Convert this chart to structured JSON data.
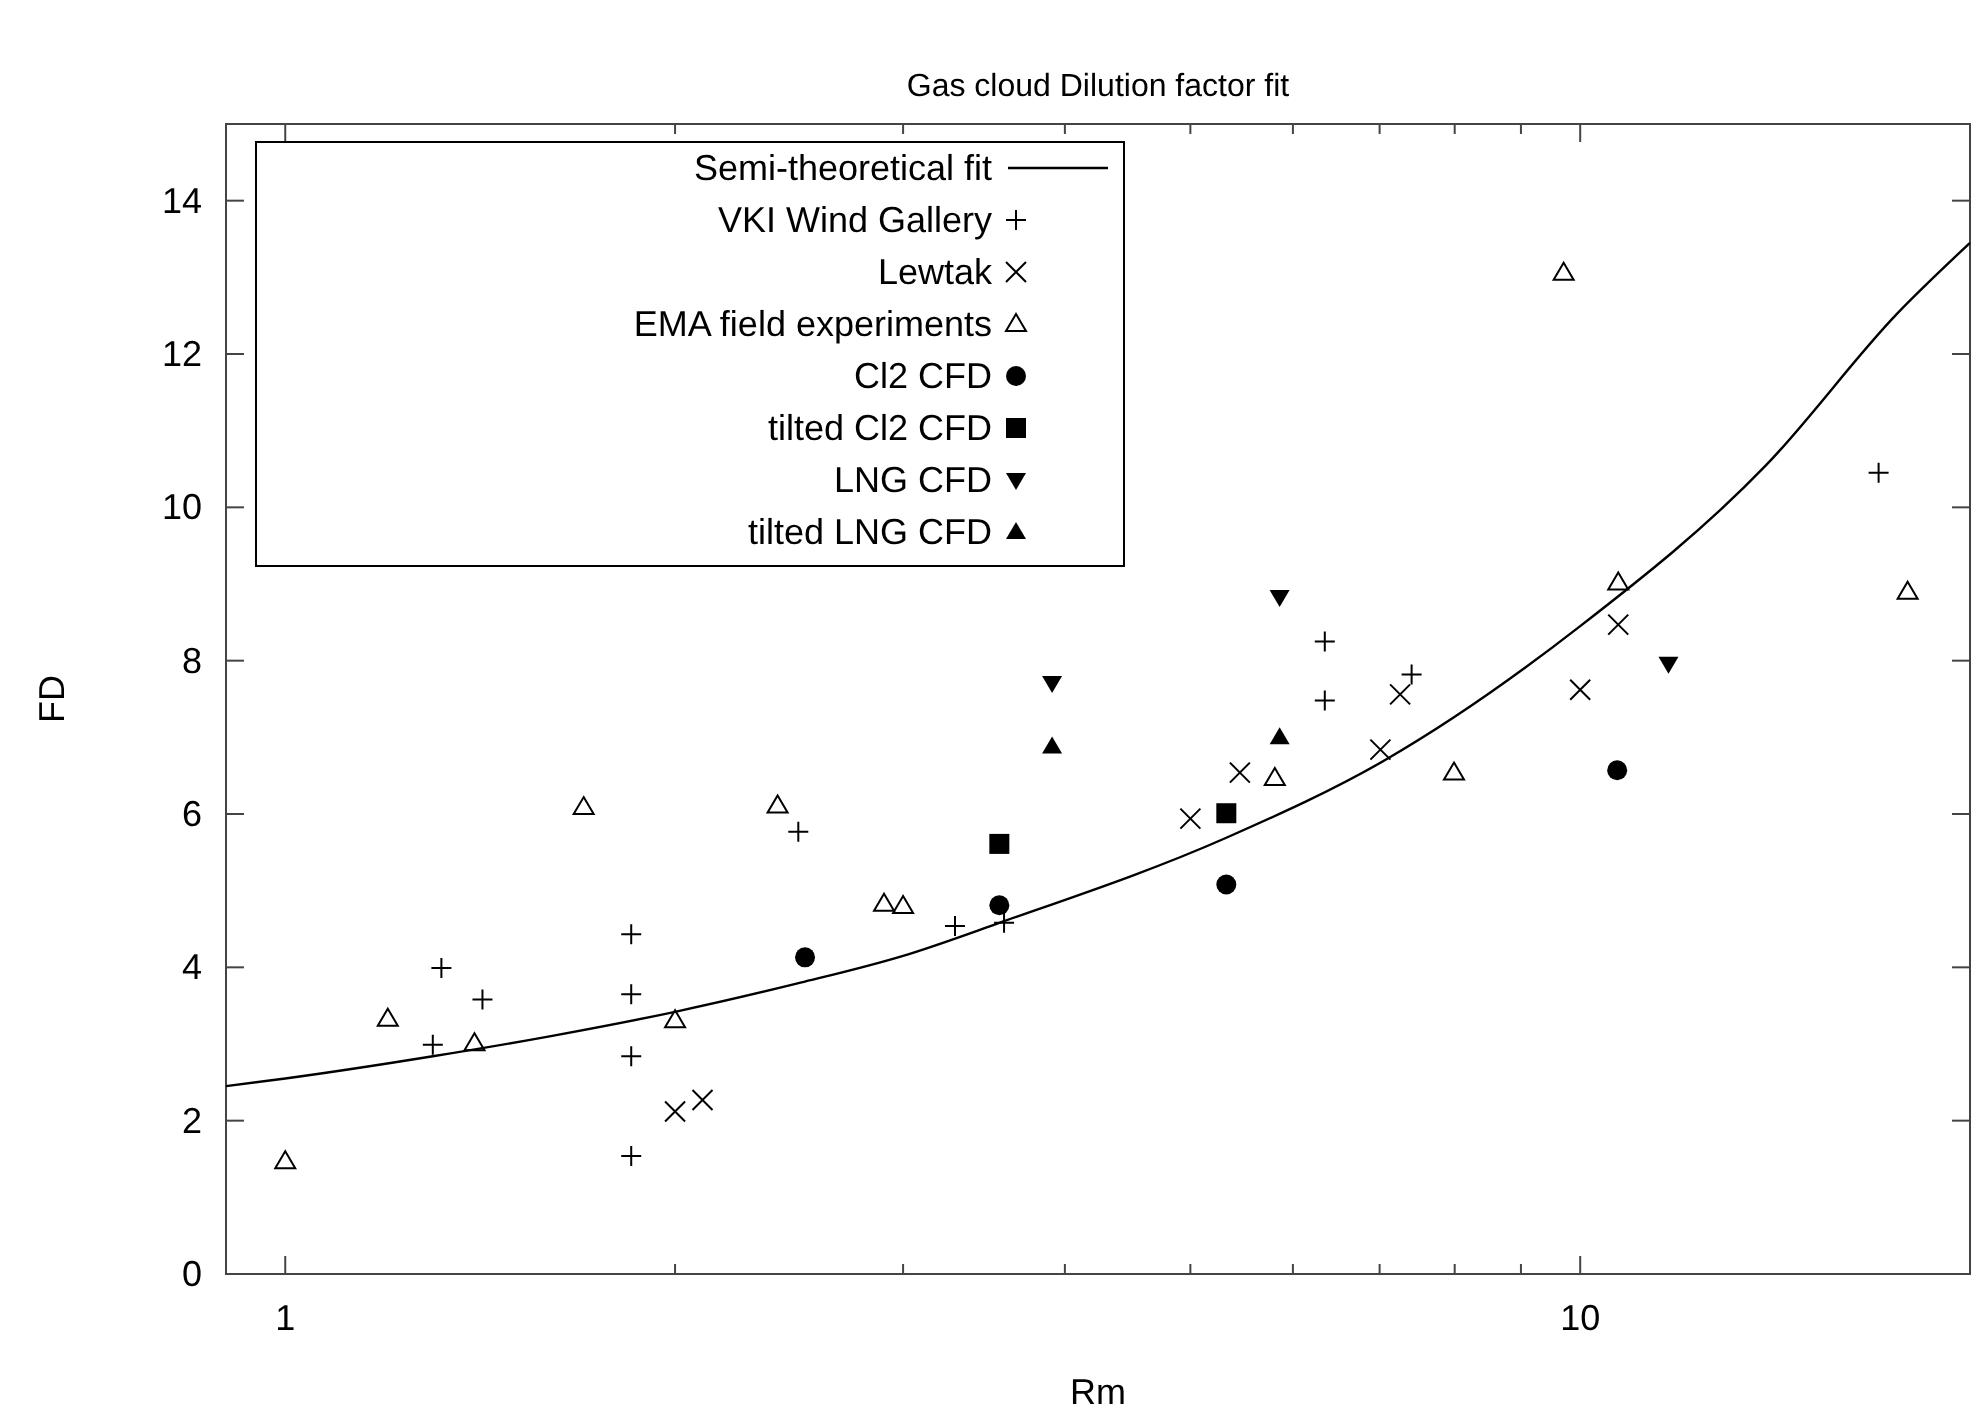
{
  "chart_data": {
    "type": "scatter",
    "title": "Gas cloud Dilution factor fit",
    "xlabel": "Rm",
    "ylabel": "FD",
    "log": "x",
    "xlim": [
      0.9,
      20
    ],
    "ylim": [
      0,
      15
    ],
    "xticks": [
      1,
      {
        "value": 2,
        "label": null
      },
      {
        "value": 3,
        "label": null
      },
      {
        "value": 4,
        "label": null
      },
      {
        "value": 5,
        "label": null
      },
      {
        "value": 6,
        "label": null
      },
      {
        "value": 7,
        "label": null
      },
      {
        "value": 8,
        "label": null
      },
      {
        "value": 9,
        "label": null
      },
      10,
      {
        "value": 20,
        "label": null
      }
    ],
    "yticks": [
      0,
      2,
      4,
      6,
      8,
      10,
      12,
      14
    ],
    "grid": false,
    "legend": "top left",
    "series": [
      {
        "name": "Semi-theoretical fit",
        "type": "line",
        "color": "#000000",
        "marker": "none",
        "line_style": "solid",
        "x": [
          0.9,
          1,
          1.3,
          1.6,
          2,
          2.5,
          3,
          3.56,
          5.33,
          7.08,
          10,
          13.9,
          17.6,
          20
        ],
        "values": [
          2.45,
          2.55,
          2.84,
          3.1,
          3.42,
          3.8,
          4.15,
          4.58,
          5.69,
          6.71,
          8.45,
          10.54,
          12.54,
          13.45
        ]
      },
      {
        "name": "VKI Wind Gallery",
        "color": "#000000",
        "marker": "plus",
        "x": [
          1.32,
          1.42,
          1.3,
          1.85,
          1.85,
          1.85,
          1.85,
          2.49,
          3.29,
          3.59,
          6.35,
          6.35,
          7.41,
          17.0
        ],
        "values": [
          3.99,
          3.58,
          2.99,
          4.43,
          3.65,
          2.84,
          1.54,
          5.77,
          4.54,
          4.58,
          8.25,
          7.48,
          7.82,
          10.45
        ]
      },
      {
        "name": "Lewtak",
        "color": "#000000",
        "marker": "cross",
        "x": [
          2.0,
          2.1,
          5.46,
          7.26,
          7.01,
          10.7,
          10.0,
          5.0
        ],
        "values": [
          2.12,
          2.27,
          6.54,
          7.56,
          6.84,
          8.47,
          7.62,
          5.94
        ]
      },
      {
        "name": "EMA field experiments",
        "color": "#000000",
        "marker": "triangle-open",
        "x": [
          1.0,
          1.2,
          1.4,
          1.7,
          2.0,
          2.4,
          2.9,
          3.0,
          9.71,
          10.7,
          17.9,
          5.81,
          7.99
        ],
        "values": [
          1.47,
          3.33,
          3.01,
          6.09,
          3.31,
          6.11,
          4.83,
          4.8,
          13.06,
          9.02,
          8.9,
          6.47,
          6.54
        ]
      },
      {
        "name": "Cl2 CFD",
        "color": "#000000",
        "marker": "circle",
        "x": [
          2.52,
          3.56,
          5.33,
          10.68
        ],
        "values": [
          4.13,
          4.81,
          5.08,
          6.57
        ]
      },
      {
        "name": "tilted Cl2 CFD",
        "color": "#000000",
        "marker": "square",
        "x": [
          3.56,
          5.33
        ],
        "values": [
          5.61,
          6.01
        ]
      },
      {
        "name": "LNG CFD",
        "color": "#000000",
        "marker": "triangle-down",
        "x": [
          3.91,
          5.86,
          11.7
        ],
        "values": [
          7.71,
          8.83,
          7.96
        ]
      },
      {
        "name": "tilted LNG CFD",
        "color": "#000000",
        "marker": "triangle",
        "x": [
          3.91,
          5.86
        ],
        "values": [
          6.88,
          7.0
        ]
      }
    ]
  }
}
